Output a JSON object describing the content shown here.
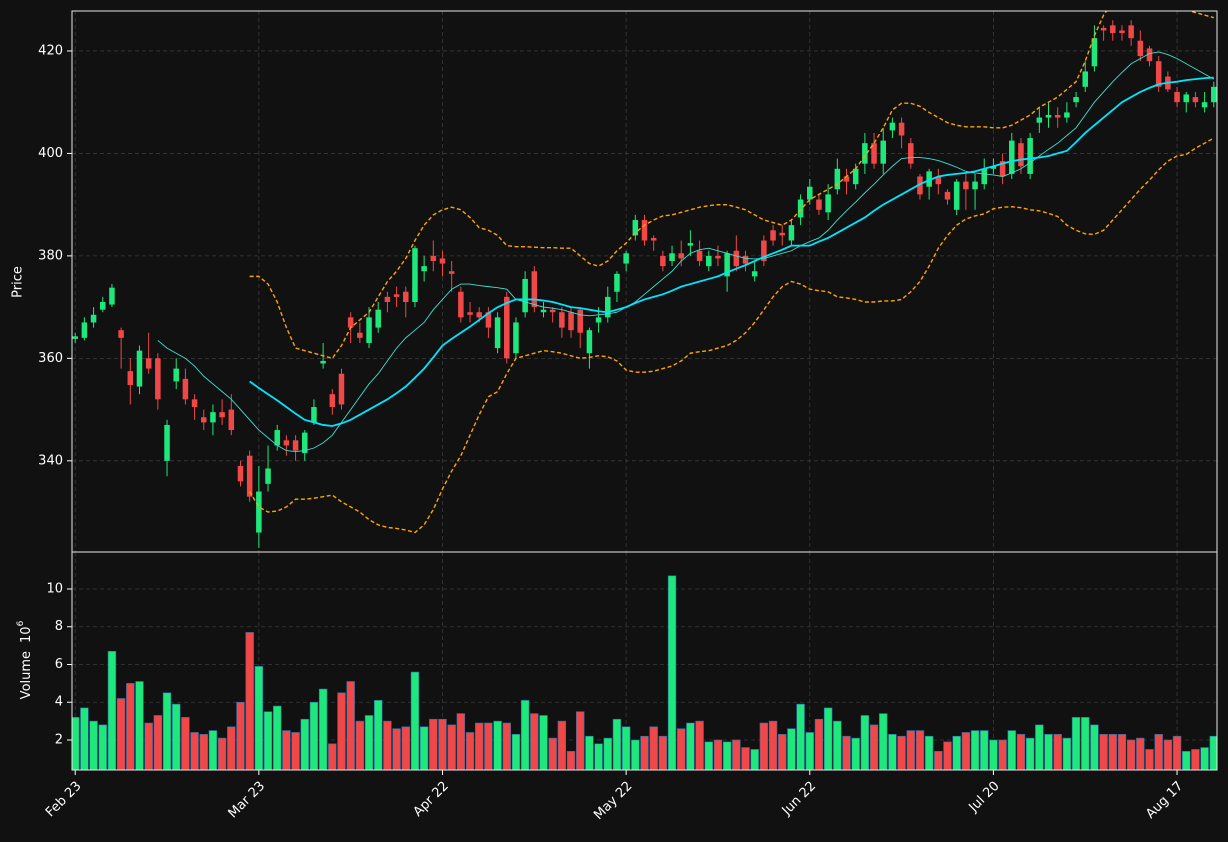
{
  "chart_data": {
    "type": "candlestick",
    "ylabel": "Price",
    "volume_label": "Volume",
    "volume_unit_base": "10",
    "volume_unit_exponent": "6",
    "grid": true,
    "up_color": "#1ee87c",
    "down_color": "#f04848",
    "categories": [
      "Feb 23",
      null,
      null,
      null,
      null,
      null,
      null,
      null,
      null,
      null,
      null,
      null,
      null,
      null,
      null,
      null,
      null,
      null,
      null,
      null,
      "Mar 23",
      null,
      null,
      null,
      null,
      null,
      null,
      null,
      null,
      null,
      null,
      null,
      null,
      null,
      null,
      null,
      null,
      null,
      null,
      null,
      "Apr 22",
      null,
      null,
      null,
      null,
      null,
      null,
      null,
      null,
      null,
      null,
      null,
      null,
      null,
      null,
      null,
      null,
      null,
      null,
      null,
      "May 22",
      null,
      null,
      null,
      null,
      null,
      null,
      null,
      null,
      null,
      null,
      null,
      null,
      null,
      null,
      null,
      null,
      null,
      null,
      null,
      "Jun 22",
      null,
      null,
      null,
      null,
      null,
      null,
      null,
      null,
      null,
      null,
      null,
      null,
      null,
      null,
      null,
      null,
      null,
      null,
      null,
      "Jul 20",
      null,
      null,
      null,
      null,
      null,
      null,
      null,
      null,
      null,
      null,
      null,
      null,
      null,
      null,
      null,
      null,
      null,
      null,
      null,
      "Aug 17",
      null,
      null,
      null,
      null
    ],
    "open": [
      363.8,
      364,
      367,
      369.5,
      370.5,
      365.5,
      357.5,
      354.5,
      360,
      360,
      340,
      355.5,
      356,
      352,
      348.5,
      347.5,
      349.5,
      350,
      339,
      341,
      326,
      335.5,
      343,
      344,
      344,
      341.5,
      347.5,
      359,
      353,
      357,
      368,
      365,
      363,
      366,
      372,
      372.5,
      373,
      371,
      377,
      380,
      379.5,
      377,
      373,
      369,
      369,
      369,
      362,
      372,
      361,
      369,
      377,
      369,
      369.5,
      369,
      369,
      369.5,
      361,
      367,
      368,
      373,
      378.5,
      384,
      387,
      383.5,
      380,
      379,
      380.5,
      382,
      381,
      378,
      380,
      376,
      381,
      380,
      376,
      383,
      385,
      384.5,
      383,
      387.5,
      391,
      391,
      388.5,
      393,
      395.5,
      394,
      398,
      402,
      398,
      404.5,
      406,
      402,
      395.5,
      393.5,
      395.5,
      392.5,
      389,
      394.5,
      393,
      394,
      397,
      398.5,
      396,
      402,
      396,
      406,
      407,
      407.5,
      407,
      410,
      413,
      417,
      424.5,
      425,
      424,
      425,
      422,
      420.5,
      418,
      415,
      412,
      410,
      411,
      409,
      410
    ],
    "high": [
      365,
      368,
      370,
      372,
      374.5,
      366,
      360,
      362.5,
      365,
      361,
      348,
      360,
      358,
      353,
      350,
      351,
      352,
      353,
      340,
      342,
      339,
      343,
      347,
      345,
      345,
      346,
      352,
      363,
      354,
      358,
      369,
      367,
      370,
      371,
      373,
      374,
      374,
      382,
      380,
      383,
      381,
      379,
      374,
      371,
      370,
      370,
      369,
      373,
      368,
      377,
      378,
      371,
      370,
      370,
      370,
      370,
      366,
      370,
      374,
      377,
      381,
      388,
      388,
      384,
      381,
      382,
      383,
      385,
      383,
      381,
      382,
      381,
      384,
      381,
      379,
      384,
      386,
      386,
      387,
      392,
      395,
      392,
      394,
      399,
      397,
      398,
      404,
      404,
      405,
      407,
      407,
      403,
      396,
      397,
      397,
      393,
      395,
      396,
      396,
      399,
      399,
      400,
      404,
      403,
      404,
      409,
      410,
      409,
      410,
      412,
      418,
      425,
      425,
      426,
      425,
      426,
      424,
      421,
      419,
      416,
      413,
      412,
      412,
      412,
      414
    ],
    "low": [
      363,
      363.5,
      366,
      369,
      370,
      358,
      351,
      353,
      357,
      350,
      337,
      354,
      351,
      348,
      346,
      345,
      347,
      345,
      335,
      332,
      323,
      334,
      342,
      341,
      340,
      340,
      347,
      358,
      349,
      350,
      363,
      363,
      362,
      365,
      369,
      370,
      368,
      370,
      375,
      377,
      376,
      373,
      367,
      367,
      367,
      364,
      361,
      359,
      360,
      368,
      369,
      368,
      367,
      364,
      364,
      362,
      358,
      365,
      367,
      371,
      377,
      383,
      382,
      381,
      377,
      378,
      378,
      380,
      378,
      377,
      378,
      373,
      377,
      377,
      375,
      378,
      382,
      382,
      382,
      386,
      390,
      388,
      387,
      392,
      392,
      393,
      396,
      397,
      396,
      403,
      401,
      397,
      391,
      391,
      392,
      390,
      388,
      389,
      389,
      393,
      396,
      394,
      395,
      396,
      395,
      404,
      405,
      405,
      406,
      409,
      412,
      416,
      422,
      422,
      422,
      421,
      418,
      417,
      412,
      412,
      409,
      408,
      409,
      408,
      409
    ],
    "close": [
      364.3,
      367,
      368.5,
      371,
      373.8,
      364,
      354.8,
      361.5,
      358,
      352,
      347,
      358,
      352,
      350.5,
      347.5,
      349.5,
      348.5,
      346,
      336,
      333,
      334,
      338.5,
      346,
      343,
      342,
      345.5,
      350.5,
      359.5,
      350.5,
      351,
      366,
      364,
      368,
      369.5,
      371,
      372,
      371,
      381.5,
      378,
      379,
      378.5,
      376.5,
      368,
      368.5,
      368,
      366,
      368,
      360,
      367,
      375.5,
      370,
      369.5,
      369,
      366,
      365.5,
      365,
      365.5,
      368,
      372,
      376.5,
      380.5,
      387,
      383,
      383,
      378,
      380.5,
      379.5,
      382.5,
      379,
      380,
      379.5,
      380.5,
      378,
      378.5,
      377,
      379,
      383,
      384,
      386,
      391,
      393.5,
      389,
      392,
      397,
      394.5,
      397,
      402,
      398,
      402.5,
      406,
      403.5,
      398,
      392,
      396.5,
      394,
      391,
      394.5,
      393,
      394.5,
      397,
      397.5,
      395.5,
      402.5,
      397.5,
      403,
      407,
      407.5,
      407,
      408,
      411,
      416,
      422.5,
      424,
      423.5,
      423.5,
      422.5,
      419,
      418,
      413,
      412.5,
      410,
      411.5,
      410,
      410,
      413
    ],
    "volume": [
      3.2,
      3.7,
      3.0,
      2.8,
      6.7,
      4.2,
      5.0,
      5.1,
      2.9,
      3.3,
      4.5,
      3.9,
      3.2,
      2.4,
      2.3,
      2.5,
      2.1,
      2.7,
      4.0,
      7.7,
      5.9,
      3.5,
      3.8,
      2.5,
      2.4,
      3.1,
      4.0,
      4.7,
      1.8,
      4.5,
      5.1,
      3.0,
      3.3,
      4.1,
      3.0,
      2.6,
      2.7,
      5.6,
      2.7,
      3.1,
      3.1,
      2.8,
      3.4,
      2.4,
      2.9,
      2.9,
      3.0,
      2.9,
      2.3,
      4.1,
      3.4,
      3.3,
      2.1,
      3.0,
      1.4,
      3.5,
      2.2,
      1.8,
      2.1,
      3.1,
      2.7,
      2.0,
      2.2,
      2.7,
      2.2,
      10.7,
      2.6,
      2.9,
      3.0,
      1.9,
      2.0,
      1.9,
      2.0,
      1.6,
      1.5,
      2.9,
      3.0,
      2.3,
      2.6,
      3.9,
      2.4,
      3.1,
      3.7,
      3.0,
      2.2,
      2.1,
      3.3,
      2.8,
      3.4,
      2.3,
      2.2,
      2.5,
      2.5,
      2.2,
      1.4,
      1.9,
      2.2,
      2.4,
      2.5,
      2.5,
      2.0,
      2.0,
      2.5,
      2.3,
      2.1,
      2.8,
      2.3,
      2.3,
      2.1,
      3.2,
      3.2,
      2.8,
      2.3,
      2.3,
      2.3,
      2.0,
      2.1,
      1.5,
      2.3,
      2.0,
      2.2,
      1.4,
      1.5,
      1.6,
      2.2
    ],
    "overlays": [
      {
        "color": "#ffa500",
        "style": "dashed",
        "values": [
          null,
          null,
          null,
          null,
          null,
          null,
          null,
          null,
          null,
          null,
          null,
          null,
          null,
          null,
          null,
          null,
          null,
          null,
          null,
          376,
          376,
          374.5,
          371,
          366,
          362,
          361.5,
          361,
          360.5,
          360,
          362.5,
          366,
          367.5,
          369,
          372,
          375,
          377,
          379.5,
          383,
          386,
          388,
          389,
          389.5,
          389,
          387.5,
          385.5,
          385,
          384,
          382,
          381.8,
          381.8,
          381.7,
          381.6,
          381.6,
          381.5,
          381.5,
          380,
          378.5,
          378,
          379,
          381,
          382.5,
          384.5,
          386,
          387,
          387.8,
          388,
          388.5,
          389,
          389.5,
          389.8,
          390,
          390,
          389.5,
          389,
          388,
          387,
          386.5,
          386,
          387,
          389,
          391,
          392,
          393,
          394,
          395.5,
          397,
          399.5,
          402,
          405,
          408.5,
          409.8,
          409.8,
          409.2,
          408,
          407,
          406,
          405.5,
          405.2,
          405.2,
          405.2,
          405,
          405,
          405.5,
          406.5,
          407.5,
          409,
          410,
          411,
          412.5,
          414,
          418,
          423,
          427,
          429.5,
          431,
          432,
          432.5,
          432.5,
          432,
          431,
          429.5,
          428,
          427.5,
          427,
          426.5
        ]
      },
      {
        "color": "#ffa500",
        "style": "dashed",
        "values": [
          null,
          null,
          null,
          null,
          null,
          null,
          null,
          null,
          null,
          null,
          null,
          null,
          null,
          null,
          null,
          null,
          null,
          null,
          null,
          334,
          331,
          330,
          330.2,
          331,
          332.5,
          332.5,
          332.7,
          333,
          333.3,
          332,
          331,
          330,
          328.5,
          327.5,
          327,
          326.8,
          326.5,
          326,
          327.5,
          330.5,
          334.5,
          338,
          341,
          345,
          349,
          352.5,
          353.5,
          357,
          360,
          360.5,
          361,
          361.5,
          361.3,
          361,
          360.5,
          360,
          360.2,
          360.5,
          360.3,
          359.5,
          357.7,
          357.3,
          357.3,
          357.5,
          358,
          358.5,
          359.5,
          361,
          361.3,
          361.5,
          362,
          362.5,
          363.5,
          365,
          367,
          369.5,
          372,
          374,
          375,
          374.5,
          373.5,
          373.2,
          373,
          372,
          371.8,
          371.5,
          371,
          371,
          371.2,
          371.2,
          371.5,
          373,
          375,
          378,
          381.5,
          384,
          386,
          387.2,
          387.8,
          388.2,
          389.2,
          389.5,
          389.6,
          389.4,
          389,
          388.8,
          388.3,
          387.7,
          386,
          385,
          384.3,
          384.2,
          385,
          387,
          389,
          391,
          393,
          394.8,
          396.8,
          398.5,
          399.5,
          399.8,
          401,
          402,
          403
        ]
      },
      {
        "color": "#40e0d0",
        "style": "thin",
        "values": [
          null,
          null,
          null,
          null,
          null,
          null,
          null,
          null,
          null,
          363.5,
          362,
          361,
          360,
          358.5,
          356.5,
          355,
          353.5,
          352,
          350,
          348,
          346,
          344.5,
          343,
          342,
          341.8,
          342,
          342.5,
          343.5,
          345,
          347.5,
          350,
          352.5,
          355,
          357,
          359.5,
          362,
          364,
          365.5,
          367,
          369.5,
          371.5,
          373.5,
          374.5,
          374.5,
          374.2,
          374,
          373.8,
          373.5,
          371.5,
          371,
          370.5,
          370,
          369.8,
          369.5,
          369,
          368.5,
          368.3,
          368.5,
          368.7,
          369,
          370,
          371,
          372.5,
          374,
          375.5,
          377,
          379,
          380.5,
          381.2,
          381.5,
          381,
          380.5,
          380,
          379.5,
          379.4,
          379.5,
          380,
          380.5,
          381,
          382,
          382.8,
          383.5,
          385,
          387,
          388.8,
          390.5,
          392.3,
          394,
          395.8,
          397.5,
          399,
          399.2,
          399.2,
          399,
          398.6,
          398,
          397.3,
          396.5,
          396.2,
          396,
          395.8,
          395.5,
          396.2,
          397,
          398.2,
          399.5,
          400.8,
          402,
          403.5,
          405,
          407.5,
          410,
          412,
          414,
          415.8,
          417.5,
          418.5,
          419.5,
          419.8,
          419.3,
          418.5,
          417.5,
          416.5,
          415.5,
          414.5
        ]
      },
      {
        "color": "#00e5ff",
        "style": "thick",
        "values": [
          null,
          null,
          null,
          null,
          null,
          null,
          null,
          null,
          null,
          null,
          null,
          null,
          null,
          null,
          null,
          null,
          null,
          null,
          null,
          355.5,
          354.2,
          353,
          351.8,
          350.5,
          349.2,
          348,
          347.5,
          347,
          346.8,
          347.3,
          348,
          349,
          350,
          351,
          352,
          353.2,
          354.5,
          356.2,
          358,
          360.2,
          362.5,
          363.8,
          365,
          366.2,
          367.5,
          368.8,
          370,
          370.8,
          371.5,
          371.5,
          371.5,
          371.3,
          371,
          370.5,
          370,
          369.8,
          369.5,
          369.2,
          369,
          369.5,
          370,
          370.8,
          371.5,
          372,
          372.5,
          373.2,
          374,
          374.5,
          375,
          375.5,
          376,
          376.8,
          377.5,
          378.2,
          379,
          379.8,
          380.5,
          381.2,
          382,
          382,
          382,
          382.8,
          383.5,
          384.5,
          385.5,
          386.5,
          387.5,
          388.8,
          390,
          391,
          392,
          393,
          394,
          394.8,
          395.5,
          395.8,
          396,
          396.2,
          396.5,
          397,
          397.5,
          398,
          398.5,
          398.8,
          399,
          399.2,
          399.5,
          400,
          400.5,
          402.2,
          404,
          405.5,
          407,
          408.5,
          410,
          411,
          412,
          412.8,
          413.5,
          413.8,
          414,
          414.3,
          414.5,
          414.7,
          414.8
        ]
      }
    ],
    "ylim": [
      322.2,
      427.8
    ],
    "yticks": [
      340,
      360,
      380,
      400,
      420
    ],
    "volume_ylim": [
      0.41,
      11.96
    ],
    "volume_yticks": [
      2,
      4,
      6,
      8,
      10
    ]
  }
}
